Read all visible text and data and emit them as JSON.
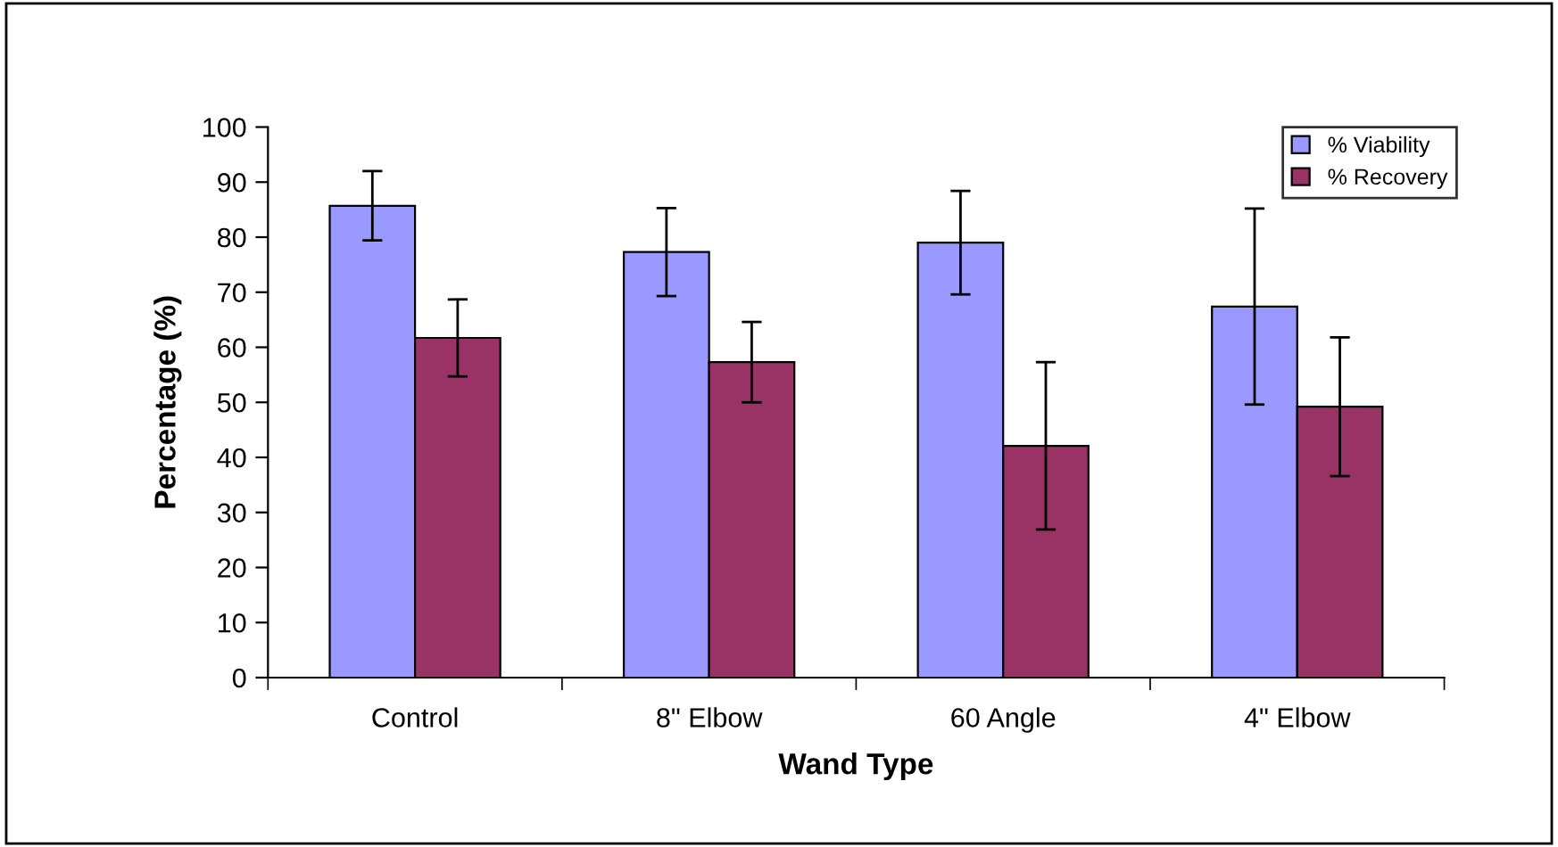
{
  "chart_data": {
    "type": "bar",
    "xlabel": "Wand Type",
    "ylabel": "Percentage (%)",
    "categories": [
      "Control",
      "8\" Elbow",
      "60 Angle",
      "4\" Elbow"
    ],
    "series": [
      {
        "name": "% Viability",
        "color": "#9999ff",
        "values": [
          85.7,
          77.3,
          79.0,
          67.4
        ],
        "errors": [
          6.3,
          8.0,
          9.4,
          17.8
        ]
      },
      {
        "name": "% Recovery",
        "color": "#993366",
        "values": [
          61.7,
          57.3,
          42.1,
          49.2
        ],
        "errors": [
          7.0,
          7.3,
          15.2,
          12.6
        ]
      }
    ],
    "ylim": [
      0,
      100
    ],
    "yticks": [
      0,
      10,
      20,
      30,
      40,
      50,
      60,
      70,
      80,
      90,
      100
    ],
    "grid": false,
    "legend": "top right"
  }
}
